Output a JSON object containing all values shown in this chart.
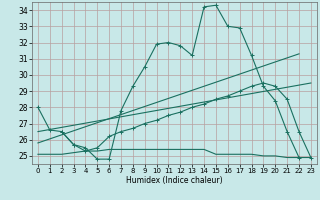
{
  "bg_color": "#c8e8e8",
  "grid_color": "#b8a0a0",
  "line_color": "#1a7060",
  "xlabel": "Humidex (Indice chaleur)",
  "xlim": [
    -0.5,
    23.5
  ],
  "ylim": [
    24.5,
    34.5
  ],
  "yticks": [
    25,
    26,
    27,
    28,
    29,
    30,
    31,
    32,
    33,
    34
  ],
  "xticks": [
    0,
    1,
    2,
    3,
    4,
    5,
    6,
    7,
    8,
    9,
    10,
    11,
    12,
    13,
    14,
    15,
    16,
    17,
    18,
    19,
    20,
    21,
    22,
    23
  ],
  "s1x": [
    0,
    1,
    2,
    3,
    4,
    5,
    6,
    7,
    8,
    9,
    10,
    11,
    12,
    13,
    14,
    15,
    16,
    17,
    18,
    19,
    20,
    21,
    22
  ],
  "s1y": [
    28.0,
    26.6,
    26.5,
    25.7,
    25.5,
    24.8,
    24.8,
    27.8,
    29.3,
    30.5,
    31.9,
    32.0,
    31.8,
    31.2,
    34.2,
    34.3,
    33.0,
    32.9,
    31.2,
    29.3,
    28.4,
    26.5,
    24.9
  ],
  "s2x": [
    2,
    3,
    4,
    5,
    6,
    7,
    8,
    9,
    10,
    11,
    12,
    13,
    14,
    15,
    16,
    17,
    18,
    19,
    20,
    21,
    22,
    23
  ],
  "s2y": [
    26.5,
    25.7,
    25.3,
    25.5,
    26.2,
    26.5,
    26.7,
    27.0,
    27.2,
    27.5,
    27.7,
    28.0,
    28.2,
    28.5,
    28.7,
    29.0,
    29.3,
    29.5,
    29.3,
    28.5,
    26.5,
    24.9
  ],
  "s3x": [
    0,
    1,
    2,
    3,
    4,
    5,
    6,
    7,
    8,
    9,
    10,
    11,
    12,
    13,
    14,
    15,
    16,
    17,
    18,
    19,
    20,
    21,
    22,
    23
  ],
  "s3y": [
    25.1,
    25.1,
    25.1,
    25.2,
    25.3,
    25.3,
    25.4,
    25.4,
    25.4,
    25.4,
    25.4,
    25.4,
    25.4,
    25.4,
    25.4,
    25.1,
    25.1,
    25.1,
    25.1,
    25.0,
    25.0,
    24.9,
    24.9,
    24.9
  ],
  "trend1_x": [
    0,
    22
  ],
  "trend1_y": [
    25.8,
    31.3
  ],
  "trend2_x": [
    0,
    23
  ],
  "trend2_y": [
    26.5,
    29.5
  ]
}
